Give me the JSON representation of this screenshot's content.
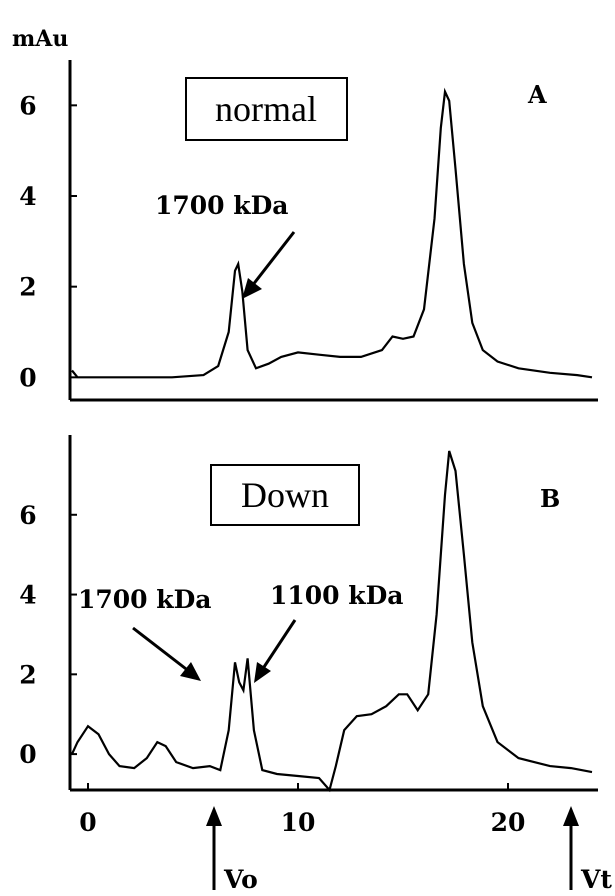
{
  "chart_data": [
    {
      "type": "line",
      "panel": "A",
      "boxed_label": "normal",
      "ylabel": "mAu",
      "xlim": [
        -1,
        24
      ],
      "ylim": [
        -0.5,
        7.0
      ],
      "yticks": [
        0,
        2,
        4,
        6
      ],
      "grid": false,
      "annotations": [
        {
          "text": "1700 kDa",
          "x": 7.2,
          "y": 2.6
        }
      ],
      "series": [
        {
          "points": [
            [
              -0.8,
              0.15
            ],
            [
              -0.5,
              0.0
            ],
            [
              0,
              0.0
            ],
            [
              2,
              0.0
            ],
            [
              4,
              0.0
            ],
            [
              5.5,
              0.05
            ],
            [
              6.2,
              0.25
            ],
            [
              6.7,
              1.0
            ],
            [
              7.0,
              2.35
            ],
            [
              7.15,
              2.5
            ],
            [
              7.35,
              1.9
            ],
            [
              7.6,
              0.6
            ],
            [
              8.0,
              0.2
            ],
            [
              8.6,
              0.3
            ],
            [
              9.2,
              0.45
            ],
            [
              10,
              0.55
            ],
            [
              11,
              0.5
            ],
            [
              12,
              0.45
            ],
            [
              13,
              0.45
            ],
            [
              14,
              0.6
            ],
            [
              14.5,
              0.9
            ],
            [
              15,
              0.85
            ],
            [
              15.5,
              0.9
            ],
            [
              16,
              1.5
            ],
            [
              16.5,
              3.5
            ],
            [
              16.8,
              5.5
            ],
            [
              17.0,
              6.3
            ],
            [
              17.2,
              6.1
            ],
            [
              17.5,
              4.6
            ],
            [
              17.9,
              2.5
            ],
            [
              18.3,
              1.2
            ],
            [
              18.8,
              0.6
            ],
            [
              19.5,
              0.35
            ],
            [
              20.5,
              0.2
            ],
            [
              22,
              0.1
            ],
            [
              23.3,
              0.05
            ],
            [
              24,
              0.0
            ]
          ]
        }
      ]
    },
    {
      "type": "line",
      "panel": "B",
      "boxed_label": "Down",
      "xlabel": "",
      "xlim": [
        -1,
        24
      ],
      "ylim": [
        -0.9,
        8.0
      ],
      "xticks": [
        0,
        10,
        20
      ],
      "yticks": [
        0,
        2,
        4,
        6
      ],
      "grid": false,
      "annotations": [
        {
          "text": "1700 kDa",
          "x": 7.0,
          "y": 2.3
        },
        {
          "text": "1100 kDa",
          "x": 8.0,
          "y": 2.3
        }
      ],
      "markers": [
        {
          "text": "Vo",
          "x": 6.0
        },
        {
          "text": "Vt",
          "x": 23.0
        }
      ],
      "series": [
        {
          "points": [
            [
              -1,
              0.0
            ],
            [
              -0.5,
              0.3
            ],
            [
              0,
              0.7
            ],
            [
              0.5,
              0.5
            ],
            [
              1,
              0.0
            ],
            [
              1.5,
              -0.3
            ],
            [
              2.2,
              -0.35
            ],
            [
              2.8,
              -0.1
            ],
            [
              3.3,
              0.3
            ],
            [
              3.7,
              0.2
            ],
            [
              4.2,
              -0.2
            ],
            [
              5,
              -0.35
            ],
            [
              5.8,
              -0.3
            ],
            [
              6.3,
              -0.4
            ],
            [
              6.7,
              0.6
            ],
            [
              7.0,
              2.3
            ],
            [
              7.2,
              1.8
            ],
            [
              7.4,
              1.6
            ],
            [
              7.6,
              2.4
            ],
            [
              7.9,
              0.6
            ],
            [
              8.3,
              -0.4
            ],
            [
              9,
              -0.5
            ],
            [
              10,
              -0.55
            ],
            [
              11,
              -0.6
            ],
            [
              11.5,
              -0.9
            ],
            [
              11.8,
              -0.3
            ],
            [
              12.2,
              0.6
            ],
            [
              12.8,
              0.95
            ],
            [
              13.5,
              1.0
            ],
            [
              14.2,
              1.2
            ],
            [
              14.8,
              1.5
            ],
            [
              15.2,
              1.5
            ],
            [
              15.7,
              1.1
            ],
            [
              16.2,
              1.5
            ],
            [
              16.6,
              3.5
            ],
            [
              17.0,
              6.5
            ],
            [
              17.2,
              7.6
            ],
            [
              17.5,
              7.1
            ],
            [
              17.9,
              5.0
            ],
            [
              18.3,
              2.8
            ],
            [
              18.8,
              1.2
            ],
            [
              19.5,
              0.3
            ],
            [
              20.5,
              -0.1
            ],
            [
              22,
              -0.3
            ],
            [
              23,
              -0.35
            ],
            [
              24,
              -0.45
            ]
          ]
        }
      ]
    }
  ]
}
